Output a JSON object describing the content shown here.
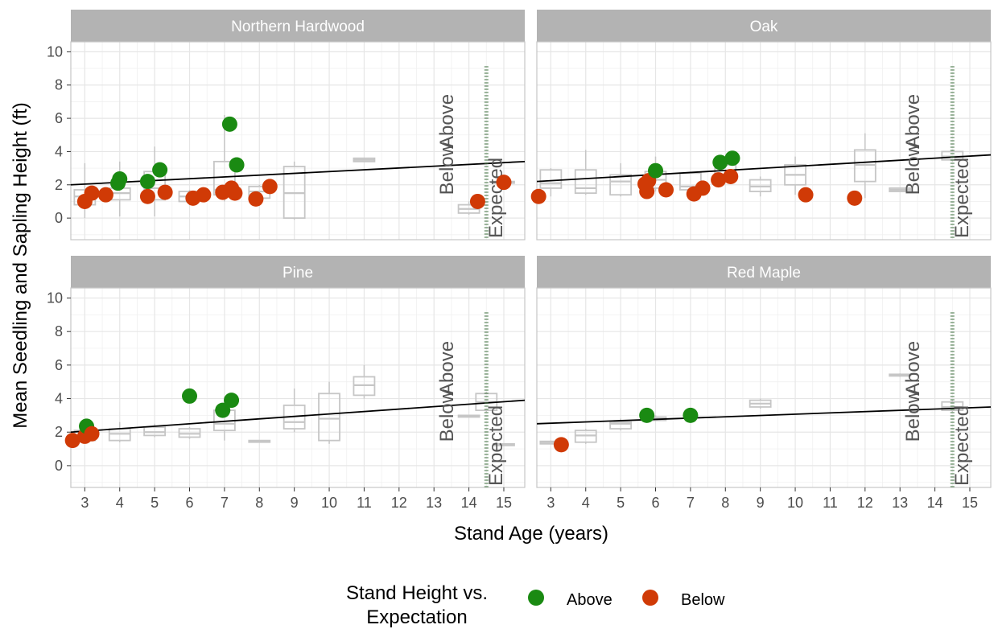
{
  "chart_data": {
    "type": "scatter",
    "xlabel": "Stand Age (years)",
    "ylabel": "Mean Seedling and Sapling Height (ft)",
    "xlim": [
      2.6,
      15.6
    ],
    "ylim": [
      -1.3,
      10.6
    ],
    "x_ticks": [
      3,
      4,
      5,
      6,
      7,
      8,
      9,
      10,
      11,
      12,
      13,
      14,
      15
    ],
    "y_ticks": [
      0,
      2,
      4,
      6,
      8,
      10
    ],
    "grid": true,
    "legend": {
      "title_lines": [
        "Stand Height vs.",
        "Expectation"
      ],
      "position": "bottom",
      "entries": [
        {
          "name": "Above",
          "color": "#1a8a12"
        },
        {
          "name": "Below",
          "color": "#d03a06"
        }
      ]
    },
    "annotations": {
      "below": "Below",
      "above": "Above",
      "expected": "Expected"
    },
    "colors": {
      "above": "#1a8a12",
      "below": "#d03a06",
      "box": "#c6c6c6",
      "line": "#000000",
      "strip": "#b3b3b3",
      "grid": "#e6e6e6",
      "panel_border": "#c6c6c6"
    },
    "panels": [
      {
        "title": "Northern Hardwood",
        "trend": [
          [
            2.6,
            2.0
          ],
          [
            15.6,
            3.4
          ]
        ],
        "points": [
          {
            "x": 3.0,
            "y": 1.0,
            "group": "below"
          },
          {
            "x": 3.2,
            "y": 1.5,
            "group": "below"
          },
          {
            "x": 3.6,
            "y": 1.4,
            "group": "below"
          },
          {
            "x": 3.95,
            "y": 2.1,
            "group": "above"
          },
          {
            "x": 4.0,
            "y": 2.35,
            "group": "above"
          },
          {
            "x": 4.8,
            "y": 2.2,
            "group": "above"
          },
          {
            "x": 4.8,
            "y": 1.3,
            "group": "below"
          },
          {
            "x": 5.15,
            "y": 2.9,
            "group": "above"
          },
          {
            "x": 5.3,
            "y": 1.55,
            "group": "below"
          },
          {
            "x": 6.1,
            "y": 1.2,
            "group": "below"
          },
          {
            "x": 6.4,
            "y": 1.4,
            "group": "below"
          },
          {
            "x": 6.95,
            "y": 1.55,
            "group": "below"
          },
          {
            "x": 7.15,
            "y": 5.65,
            "group": "above"
          },
          {
            "x": 7.2,
            "y": 1.8,
            "group": "below"
          },
          {
            "x": 7.3,
            "y": 1.5,
            "group": "below"
          },
          {
            "x": 7.35,
            "y": 3.2,
            "group": "above"
          },
          {
            "x": 7.9,
            "y": 1.15,
            "group": "below"
          },
          {
            "x": 8.3,
            "y": 1.9,
            "group": "below"
          },
          {
            "x": 14.25,
            "y": 1.0,
            "group": "below"
          },
          {
            "x": 15.0,
            "y": 2.15,
            "group": "below"
          }
        ],
        "boxes": [
          {
            "x": 3,
            "q1": 0.8,
            "median": 1.3,
            "q3": 1.7,
            "lo": 0.0,
            "hi": 3.3
          },
          {
            "x": 4,
            "q1": 1.1,
            "median": 1.5,
            "q3": 1.8,
            "lo": 0.1,
            "hi": 3.4
          },
          {
            "x": 5,
            "q1": 1.1,
            "median": 1.8,
            "q3": 2.8,
            "lo": 0.1,
            "hi": 4.3
          },
          {
            "x": 6,
            "q1": 1.0,
            "median": 1.3,
            "q3": 1.6,
            "lo": 0.9,
            "hi": 1.7
          },
          {
            "x": 7,
            "q1": 1.4,
            "median": 1.7,
            "q3": 3.4,
            "lo": 1.0,
            "hi": 6.2
          },
          {
            "x": 8,
            "q1": 1.2,
            "median": 1.6,
            "q3": 1.9,
            "lo": 1.1,
            "hi": 2.0
          },
          {
            "x": 9,
            "q1": 0.0,
            "median": 1.5,
            "q3": 3.1,
            "lo": -0.1,
            "hi": 3.4
          },
          {
            "x": 11,
            "q1": 3.4,
            "median": 3.5,
            "q3": 3.6,
            "lo": 3.4,
            "hi": 3.6
          },
          {
            "x": 14,
            "q1": 0.3,
            "median": 0.55,
            "q3": 0.8,
            "lo": 0.2,
            "hi": 1.0
          },
          {
            "x": 15,
            "q1": 2.1,
            "median": 2.15,
            "q3": 2.2,
            "lo": 2.1,
            "hi": 2.2
          }
        ]
      },
      {
        "title": "Oak",
        "trend": [
          [
            2.6,
            2.2
          ],
          [
            15.6,
            3.8
          ]
        ],
        "points": [
          {
            "x": 2.65,
            "y": 1.3,
            "group": "below"
          },
          {
            "x": 5.7,
            "y": 2.05,
            "group": "below"
          },
          {
            "x": 5.75,
            "y": 1.6,
            "group": "below"
          },
          {
            "x": 5.8,
            "y": 2.25,
            "group": "below"
          },
          {
            "x": 6.0,
            "y": 2.85,
            "group": "above"
          },
          {
            "x": 6.3,
            "y": 1.7,
            "group": "below"
          },
          {
            "x": 7.1,
            "y": 1.45,
            "group": "below"
          },
          {
            "x": 7.35,
            "y": 1.8,
            "group": "below"
          },
          {
            "x": 7.8,
            "y": 2.3,
            "group": "below"
          },
          {
            "x": 7.85,
            "y": 3.35,
            "group": "above"
          },
          {
            "x": 8.15,
            "y": 2.5,
            "group": "below"
          },
          {
            "x": 8.2,
            "y": 3.6,
            "group": "above"
          },
          {
            "x": 10.3,
            "y": 1.4,
            "group": "below"
          },
          {
            "x": 11.7,
            "y": 1.2,
            "group": "below"
          }
        ],
        "boxes": [
          {
            "x": 3,
            "q1": 1.8,
            "median": 2.1,
            "q3": 2.9,
            "lo": 1.3,
            "hi": 3.0
          },
          {
            "x": 4,
            "q1": 1.5,
            "median": 1.8,
            "q3": 2.9,
            "lo": 1.4,
            "hi": 4.1
          },
          {
            "x": 5,
            "q1": 1.4,
            "median": 2.2,
            "q3": 2.6,
            "lo": 1.3,
            "hi": 3.3
          },
          {
            "x": 6,
            "q1": 1.8,
            "median": 2.3,
            "q3": 2.8,
            "lo": 1.6,
            "hi": 3.7
          },
          {
            "x": 7,
            "q1": 1.7,
            "median": 1.9,
            "q3": 2.7,
            "lo": 1.5,
            "hi": 2.8
          },
          {
            "x": 8,
            "q1": 2.3,
            "median": 2.6,
            "q3": 3.2,
            "lo": 2.2,
            "hi": 3.6
          },
          {
            "x": 9,
            "q1": 1.6,
            "median": 1.9,
            "q3": 2.3,
            "lo": 1.3,
            "hi": 2.5
          },
          {
            "x": 10,
            "q1": 2.0,
            "median": 2.6,
            "q3": 3.2,
            "lo": 1.4,
            "hi": 3.7
          },
          {
            "x": 12,
            "q1": 2.2,
            "median": 3.2,
            "q3": 4.1,
            "lo": 1.2,
            "hi": 5.1
          },
          {
            "x": 13,
            "q1": 1.6,
            "median": 1.7,
            "q3": 1.8,
            "lo": 1.6,
            "hi": 1.8
          },
          {
            "x": 14.5,
            "q1": 3.5,
            "median": 3.7,
            "q3": 4.0,
            "lo": 3.4,
            "hi": 4.1
          }
        ]
      },
      {
        "title": "Pine",
        "trend": [
          [
            2.6,
            2.0
          ],
          [
            15.6,
            3.9
          ]
        ],
        "points": [
          {
            "x": 2.65,
            "y": 1.5,
            "group": "below"
          },
          {
            "x": 3.0,
            "y": 1.75,
            "group": "below"
          },
          {
            "x": 3.05,
            "y": 2.35,
            "group": "above"
          },
          {
            "x": 3.2,
            "y": 1.9,
            "group": "below"
          },
          {
            "x": 6.0,
            "y": 4.15,
            "group": "above"
          },
          {
            "x": 6.95,
            "y": 3.3,
            "group": "above"
          },
          {
            "x": 7.2,
            "y": 3.9,
            "group": "above"
          }
        ],
        "boxes": [
          {
            "x": 3,
            "q1": 1.5,
            "median": 1.7,
            "q3": 2.1,
            "lo": 1.4,
            "hi": 2.5
          },
          {
            "x": 4,
            "q1": 1.5,
            "median": 1.9,
            "q3": 2.2,
            "lo": 1.4,
            "hi": 2.6
          },
          {
            "x": 5,
            "q1": 1.8,
            "median": 2.0,
            "q3": 2.3,
            "lo": 1.7,
            "hi": 2.5
          },
          {
            "x": 6,
            "q1": 1.7,
            "median": 1.9,
            "q3": 2.2,
            "lo": 1.6,
            "hi": 2.3
          },
          {
            "x": 7,
            "q1": 2.1,
            "median": 2.5,
            "q3": 3.3,
            "lo": 1.5,
            "hi": 4.1
          },
          {
            "x": 8,
            "q1": 1.4,
            "median": 1.45,
            "q3": 1.5,
            "lo": 1.4,
            "hi": 1.5
          },
          {
            "x": 9,
            "q1": 2.2,
            "median": 2.6,
            "q3": 3.6,
            "lo": 2.0,
            "hi": 4.6
          },
          {
            "x": 10,
            "q1": 1.5,
            "median": 2.8,
            "q3": 4.3,
            "lo": 1.3,
            "hi": 5.0
          },
          {
            "x": 11,
            "q1": 4.2,
            "median": 4.8,
            "q3": 5.3,
            "lo": 4.0,
            "hi": 6.0
          },
          {
            "x": 14,
            "q1": 2.9,
            "median": 2.95,
            "q3": 3.0,
            "lo": 2.9,
            "hi": 3.0
          },
          {
            "x": 14.5,
            "q1": 3.3,
            "median": 3.8,
            "q3": 4.3,
            "lo": 3.2,
            "hi": 4.4
          },
          {
            "x": 15,
            "q1": 1.2,
            "median": 1.25,
            "q3": 1.3,
            "lo": 1.2,
            "hi": 1.3
          }
        ]
      },
      {
        "title": "Red Maple",
        "trend": [
          [
            2.6,
            2.5
          ],
          [
            15.6,
            3.5
          ]
        ],
        "points": [
          {
            "x": 3.3,
            "y": 1.25,
            "group": "below"
          },
          {
            "x": 5.75,
            "y": 3.0,
            "group": "above"
          },
          {
            "x": 7.0,
            "y": 3.0,
            "group": "above"
          }
        ],
        "boxes": [
          {
            "x": 3,
            "q1": 1.3,
            "median": 1.4,
            "q3": 1.45,
            "lo": 1.3,
            "hi": 1.5
          },
          {
            "x": 4,
            "q1": 1.4,
            "median": 1.8,
            "q3": 2.1,
            "lo": 1.3,
            "hi": 2.2
          },
          {
            "x": 5,
            "q1": 2.2,
            "median": 2.5,
            "q3": 2.6,
            "lo": 2.1,
            "hi": 2.8
          },
          {
            "x": 6,
            "q1": 2.7,
            "median": 2.8,
            "q3": 2.9,
            "lo": 2.7,
            "hi": 3.0
          },
          {
            "x": 9,
            "q1": 3.5,
            "median": 3.7,
            "q3": 3.9,
            "lo": 3.4,
            "hi": 4.0
          },
          {
            "x": 13,
            "q1": 5.35,
            "median": 5.4,
            "q3": 5.45,
            "lo": 5.3,
            "hi": 5.5
          },
          {
            "x": 14.5,
            "q1": 3.3,
            "median": 3.5,
            "q3": 3.8,
            "lo": 3.2,
            "hi": 3.9
          }
        ]
      }
    ]
  }
}
